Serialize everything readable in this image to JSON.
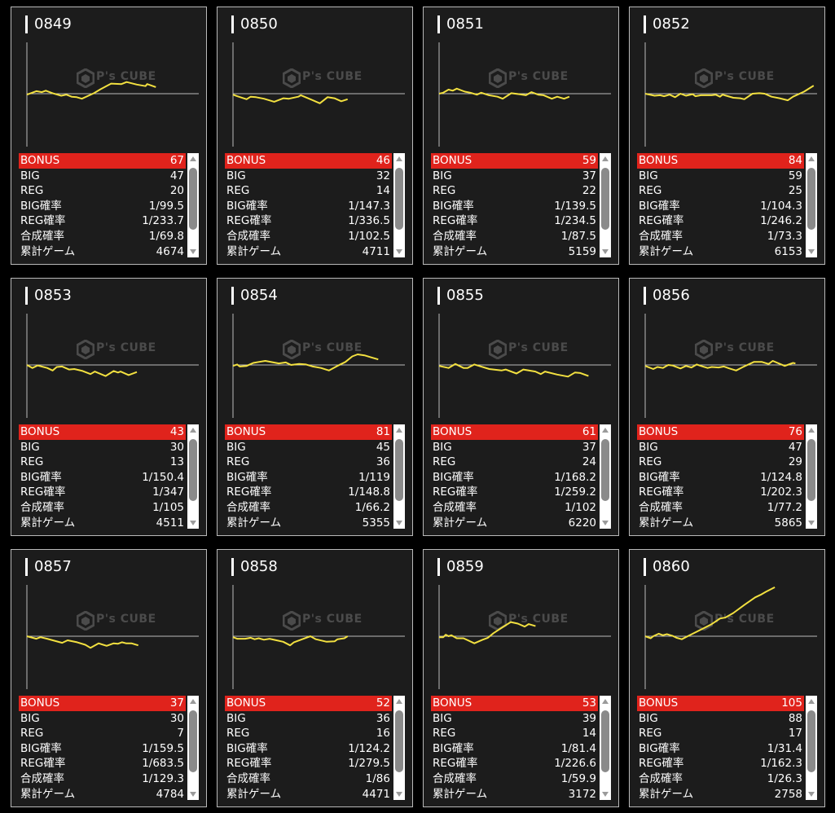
{
  "labels": {
    "bonus": "BONUS",
    "big": "BIG",
    "reg": "REG",
    "big_rate": "BIG確率",
    "reg_rate": "REG確率",
    "total_rate": "合成確率",
    "games": "累計ゲーム"
  },
  "watermark": "P's CUBE",
  "colors": {
    "line": "#f2e040",
    "bonus_row": "#e0231c",
    "card_bg": "#1c1c1c"
  },
  "chart_data": {
    "type": "line",
    "xlim": [
      0,
      100
    ],
    "ylim": [
      -100,
      100
    ],
    "description_units": "relative difference trend per machine",
    "series": [
      {
        "name": "0849",
        "x": [
          0,
          5.5,
          8.7,
          11,
          15,
          20,
          23,
          26,
          29,
          32,
          39,
          43,
          49,
          55,
          58,
          64,
          69,
          70,
          75
        ],
        "y": [
          -2,
          5,
          3,
          6,
          1,
          -4,
          -2,
          -6,
          -7,
          -10,
          1,
          9,
          20,
          19,
          23,
          18,
          15,
          19,
          13
        ]
      },
      {
        "name": "0850",
        "x": [
          0,
          2.4,
          7.9,
          10.3,
          13.4,
          18,
          24,
          29.4,
          32.5,
          38,
          39.5,
          45,
          50.5,
          55,
          59,
          63,
          66.7
        ],
        "y": [
          -2,
          -5,
          -11,
          -6,
          -7,
          -10,
          -16,
          -9,
          -10,
          -6,
          -3,
          -11,
          -19,
          -7,
          -9,
          -15,
          -11
        ]
      },
      {
        "name": "0851",
        "x": [
          0,
          2.4,
          5.5,
          7.9,
          10.3,
          15,
          18.2,
          22,
          24.5,
          29,
          34,
          37,
          42,
          46.6,
          50.5,
          53.7,
          57.7,
          60.8,
          65.6,
          68.7,
          72.7,
          75.8
        ],
        "y": [
          0,
          2,
          8,
          6,
          10,
          4,
          2,
          -2,
          2,
          -3,
          -6,
          -10,
          1,
          -1,
          -3,
          3,
          -2,
          -3,
          -10,
          -6,
          -10,
          -6
        ]
      },
      {
        "name": "0852",
        "x": [
          0,
          5.5,
          8.7,
          11,
          14.2,
          17.4,
          20.5,
          23.7,
          27.6,
          29.2,
          32.4,
          38.7,
          41,
          43.5,
          45,
          51.3,
          55.3,
          57.7,
          62.4,
          66.4,
          69.5,
          73.5,
          78.2,
          83,
          86,
          92.4,
          98
        ],
        "y": [
          0,
          -4,
          -3,
          -5,
          -2,
          -7,
          0,
          -4,
          -1,
          -5,
          -3,
          -3,
          -2,
          -6,
          -2,
          -8,
          -9,
          -11,
          0,
          1,
          0,
          -6,
          -9,
          -13,
          -6,
          4,
          16
        ]
      },
      {
        "name": "0853",
        "x": [
          0,
          3.2,
          6.3,
          11.8,
          15,
          17.4,
          20.5,
          24.5,
          27.6,
          32.4,
          37,
          39.5,
          45.8,
          50.5,
          53,
          54.5,
          59.2,
          64
        ],
        "y": [
          0,
          -6,
          -1,
          -6,
          -11,
          -4,
          -3,
          -9,
          -8,
          -12,
          -18,
          -13,
          -22,
          -12,
          -15,
          -13,
          -20,
          -14
        ]
      },
      {
        "name": "0854",
        "x": [
          0,
          2.4,
          3.9,
          7.9,
          11.8,
          15,
          18.8,
          23.5,
          26.7,
          30.7,
          33.8,
          38.5,
          42.5,
          46.4,
          51.2,
          55.9,
          60.7,
          65.4,
          69.4,
          72.5,
          76.5,
          80.4,
          84.5
        ],
        "y": [
          -2,
          1,
          -3,
          -2,
          4,
          6,
          8,
          5,
          3,
          5,
          0,
          2,
          1,
          -3,
          -6,
          -11,
          -2,
          6,
          17,
          21,
          19,
          15,
          11
        ]
      },
      {
        "name": "0855",
        "x": [
          0,
          5.5,
          9.5,
          14.2,
          16.6,
          20.5,
          29.2,
          36.3,
          38.7,
          45,
          49,
          56,
          59.2,
          61.6,
          68.7,
          75,
          79,
          82.2,
          86.9
        ],
        "y": [
          -2,
          -6,
          2,
          -6,
          -6,
          1,
          -8,
          -11,
          -9,
          -17,
          -9,
          -13,
          -18,
          -13,
          -19,
          -23,
          -15,
          -16,
          -22
        ]
      },
      {
        "name": "0856",
        "x": [
          0,
          4.7,
          7.1,
          10.3,
          13.4,
          15.8,
          20.5,
          23.7,
          26.9,
          30,
          32.4,
          36.3,
          38.7,
          42.7,
          45.8,
          49,
          52.9,
          56.9,
          63.2,
          67.9,
          71.8,
          74.2,
          81.2,
          86,
          87.4
        ],
        "y": [
          -2,
          -8,
          -4,
          -6,
          0,
          -1,
          -7,
          -2,
          -5,
          1,
          -2,
          -6,
          -4,
          -5,
          -3,
          -7,
          -11,
          -4,
          6,
          6,
          2,
          8,
          -2,
          4,
          3
        ]
      },
      {
        "name": "0857",
        "x": [
          0,
          5.5,
          7.9,
          11.8,
          20.5,
          23.7,
          29.2,
          34,
          37,
          41.7,
          46.4,
          50.5,
          52.9,
          55.3,
          57.7,
          60.8,
          64.8
        ],
        "y": [
          0,
          -5,
          -2,
          -5,
          -13,
          -8,
          -12,
          -17,
          -23,
          -14,
          -19,
          -14,
          -15,
          -12,
          -14,
          -14,
          -18
        ]
      },
      {
        "name": "0858",
        "x": [
          0,
          2.4,
          7.1,
          10.3,
          12.6,
          15,
          18,
          21.3,
          25.3,
          29.2,
          33.2,
          35.5,
          40.3,
          45,
          48.2,
          54.5,
          59.2,
          60.8,
          64.8,
          66.7
        ],
        "y": [
          -2,
          -5,
          -5,
          -3,
          -6,
          -4,
          -7,
          -5,
          -8,
          -11,
          -18,
          -12,
          -6,
          0,
          -6,
          -11,
          -10,
          -6,
          -4,
          0
        ]
      },
      {
        "name": "0859",
        "x": [
          0,
          2.4,
          3.9,
          5.5,
          7.1,
          10.3,
          14.2,
          20.5,
          25.3,
          28.4,
          31.6,
          37,
          41.7,
          45.8,
          49.8,
          52.1,
          56.1
        ],
        "y": [
          -2,
          -2,
          3,
          0,
          2,
          -4,
          -4,
          -14,
          -7,
          -3,
          6,
          18,
          28,
          25,
          19,
          24,
          20
        ]
      },
      {
        "name": "0860",
        "x": [
          0,
          3.2,
          4.7,
          7.9,
          10.3,
          12.6,
          15.8,
          18.2,
          21.3,
          25.3,
          32.4,
          38.7,
          43.5,
          46.6,
          51.3,
          57.7,
          64,
          67.1,
          70.3,
          75.4
        ],
        "y": [
          0,
          -4,
          0,
          5,
          2,
          4,
          1,
          -3,
          -6,
          1,
          13,
          24,
          35,
          37,
          46,
          62,
          77,
          82,
          88,
          97
        ]
      }
    ]
  },
  "machines": [
    {
      "id": "0849",
      "bonus": "67",
      "big": "47",
      "reg": "20",
      "big_rate": "1/99.5",
      "reg_rate": "1/233.7",
      "total_rate": "1/69.8",
      "games": "4674"
    },
    {
      "id": "0850",
      "bonus": "46",
      "big": "32",
      "reg": "14",
      "big_rate": "1/147.3",
      "reg_rate": "1/336.5",
      "total_rate": "1/102.5",
      "games": "4711"
    },
    {
      "id": "0851",
      "bonus": "59",
      "big": "37",
      "reg": "22",
      "big_rate": "1/139.5",
      "reg_rate": "1/234.5",
      "total_rate": "1/87.5",
      "games": "5159"
    },
    {
      "id": "0852",
      "bonus": "84",
      "big": "59",
      "reg": "25",
      "big_rate": "1/104.3",
      "reg_rate": "1/246.2",
      "total_rate": "1/73.3",
      "games": "6153"
    },
    {
      "id": "0853",
      "bonus": "43",
      "big": "30",
      "reg": "13",
      "big_rate": "1/150.4",
      "reg_rate": "1/347",
      "total_rate": "1/105",
      "games": "4511"
    },
    {
      "id": "0854",
      "bonus": "81",
      "big": "45",
      "reg": "36",
      "big_rate": "1/119",
      "reg_rate": "1/148.8",
      "total_rate": "1/66.2",
      "games": "5355"
    },
    {
      "id": "0855",
      "bonus": "61",
      "big": "37",
      "reg": "24",
      "big_rate": "1/168.2",
      "reg_rate": "1/259.2",
      "total_rate": "1/102",
      "games": "6220"
    },
    {
      "id": "0856",
      "bonus": "76",
      "big": "47",
      "reg": "29",
      "big_rate": "1/124.8",
      "reg_rate": "1/202.3",
      "total_rate": "1/77.2",
      "games": "5865"
    },
    {
      "id": "0857",
      "bonus": "37",
      "big": "30",
      "reg": "7",
      "big_rate": "1/159.5",
      "reg_rate": "1/683.5",
      "total_rate": "1/129.3",
      "games": "4784"
    },
    {
      "id": "0858",
      "bonus": "52",
      "big": "36",
      "reg": "16",
      "big_rate": "1/124.2",
      "reg_rate": "1/279.5",
      "total_rate": "1/86",
      "games": "4471"
    },
    {
      "id": "0859",
      "bonus": "53",
      "big": "39",
      "reg": "14",
      "big_rate": "1/81.4",
      "reg_rate": "1/226.6",
      "total_rate": "1/59.9",
      "games": "3172"
    },
    {
      "id": "0860",
      "bonus": "105",
      "big": "88",
      "reg": "17",
      "big_rate": "1/31.4",
      "reg_rate": "1/162.3",
      "total_rate": "1/26.3",
      "games": "2758"
    }
  ]
}
